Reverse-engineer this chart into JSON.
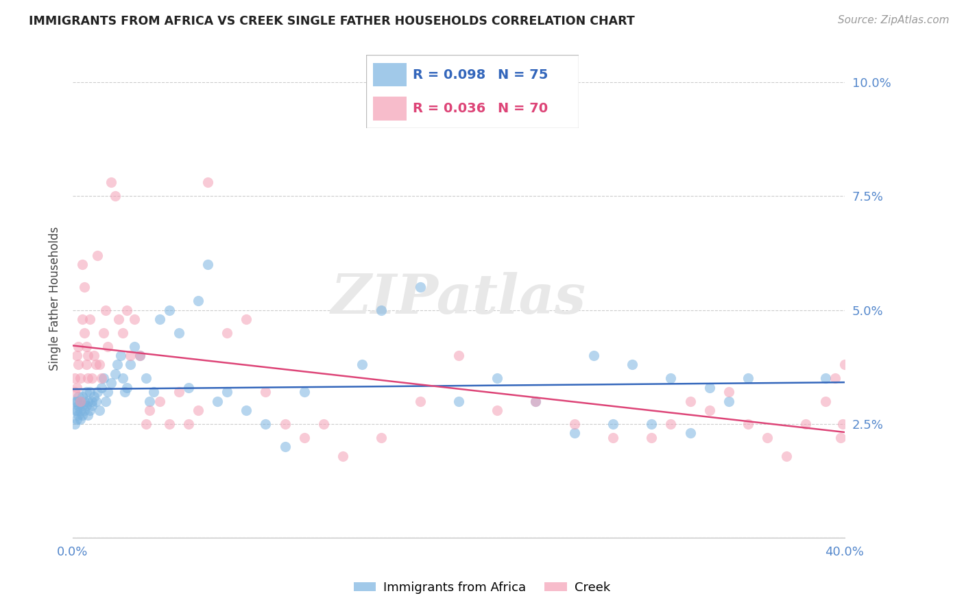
{
  "title": "IMMIGRANTS FROM AFRICA VS CREEK SINGLE FATHER HOUSEHOLDS CORRELATION CHART",
  "source": "Source: ZipAtlas.com",
  "ylabel": "Single Father Households",
  "yticks": [
    0.0,
    0.025,
    0.05,
    0.075,
    0.1
  ],
  "ytick_labels": [
    "",
    "2.5%",
    "5.0%",
    "7.5%",
    "10.0%"
  ],
  "xlim": [
    0.0,
    0.4
  ],
  "ylim": [
    0.0,
    0.105
  ],
  "blue_color": "#7ab3e0",
  "pink_color": "#f4a0b5",
  "blue_line_color": "#3366bb",
  "pink_line_color": "#dd4477",
  "tick_color": "#5588cc",
  "legend_blue_R": "R = 0.098",
  "legend_blue_N": "N = 75",
  "legend_pink_R": "R = 0.036",
  "legend_pink_N": "N = 70",
  "watermark": "ZIPatlas",
  "blue_x": [
    0.001,
    0.001,
    0.001,
    0.002,
    0.002,
    0.002,
    0.003,
    0.003,
    0.003,
    0.004,
    0.004,
    0.004,
    0.005,
    0.005,
    0.005,
    0.006,
    0.006,
    0.007,
    0.007,
    0.008,
    0.008,
    0.009,
    0.009,
    0.01,
    0.01,
    0.011,
    0.012,
    0.013,
    0.014,
    0.015,
    0.016,
    0.017,
    0.018,
    0.02,
    0.022,
    0.023,
    0.025,
    0.026,
    0.027,
    0.028,
    0.03,
    0.032,
    0.035,
    0.038,
    0.04,
    0.042,
    0.045,
    0.05,
    0.055,
    0.06,
    0.065,
    0.07,
    0.075,
    0.08,
    0.09,
    0.1,
    0.11,
    0.12,
    0.15,
    0.16,
    0.18,
    0.2,
    0.22,
    0.24,
    0.26,
    0.27,
    0.28,
    0.29,
    0.3,
    0.31,
    0.32,
    0.33,
    0.34,
    0.35,
    0.39
  ],
  "blue_y": [
    0.028,
    0.03,
    0.025,
    0.03,
    0.028,
    0.026,
    0.027,
    0.029,
    0.031,
    0.028,
    0.03,
    0.026,
    0.029,
    0.027,
    0.031,
    0.028,
    0.03,
    0.029,
    0.032,
    0.03,
    0.027,
    0.028,
    0.032,
    0.03,
    0.029,
    0.031,
    0.03,
    0.032,
    0.028,
    0.033,
    0.035,
    0.03,
    0.032,
    0.034,
    0.036,
    0.038,
    0.04,
    0.035,
    0.032,
    0.033,
    0.038,
    0.042,
    0.04,
    0.035,
    0.03,
    0.032,
    0.048,
    0.05,
    0.045,
    0.033,
    0.052,
    0.06,
    0.03,
    0.032,
    0.028,
    0.025,
    0.02,
    0.032,
    0.038,
    0.05,
    0.055,
    0.03,
    0.035,
    0.03,
    0.023,
    0.04,
    0.025,
    0.038,
    0.025,
    0.035,
    0.023,
    0.033,
    0.03,
    0.035,
    0.035
  ],
  "pink_x": [
    0.001,
    0.001,
    0.002,
    0.002,
    0.003,
    0.003,
    0.004,
    0.004,
    0.005,
    0.005,
    0.006,
    0.006,
    0.007,
    0.007,
    0.008,
    0.008,
    0.009,
    0.01,
    0.011,
    0.012,
    0.013,
    0.014,
    0.015,
    0.016,
    0.017,
    0.018,
    0.02,
    0.022,
    0.024,
    0.026,
    0.028,
    0.03,
    0.032,
    0.035,
    0.038,
    0.04,
    0.045,
    0.05,
    0.055,
    0.06,
    0.065,
    0.07,
    0.08,
    0.09,
    0.1,
    0.11,
    0.12,
    0.13,
    0.14,
    0.16,
    0.18,
    0.2,
    0.22,
    0.24,
    0.26,
    0.28,
    0.3,
    0.31,
    0.32,
    0.33,
    0.34,
    0.35,
    0.36,
    0.37,
    0.38,
    0.39,
    0.395,
    0.398,
    0.399,
    0.4
  ],
  "pink_y": [
    0.032,
    0.035,
    0.033,
    0.04,
    0.038,
    0.042,
    0.035,
    0.03,
    0.06,
    0.048,
    0.045,
    0.055,
    0.038,
    0.042,
    0.035,
    0.04,
    0.048,
    0.035,
    0.04,
    0.038,
    0.062,
    0.038,
    0.035,
    0.045,
    0.05,
    0.042,
    0.078,
    0.075,
    0.048,
    0.045,
    0.05,
    0.04,
    0.048,
    0.04,
    0.025,
    0.028,
    0.03,
    0.025,
    0.032,
    0.025,
    0.028,
    0.078,
    0.045,
    0.048,
    0.032,
    0.025,
    0.022,
    0.025,
    0.018,
    0.022,
    0.03,
    0.04,
    0.028,
    0.03,
    0.025,
    0.022,
    0.022,
    0.025,
    0.03,
    0.028,
    0.032,
    0.025,
    0.022,
    0.018,
    0.025,
    0.03,
    0.035,
    0.022,
    0.025,
    0.038
  ]
}
